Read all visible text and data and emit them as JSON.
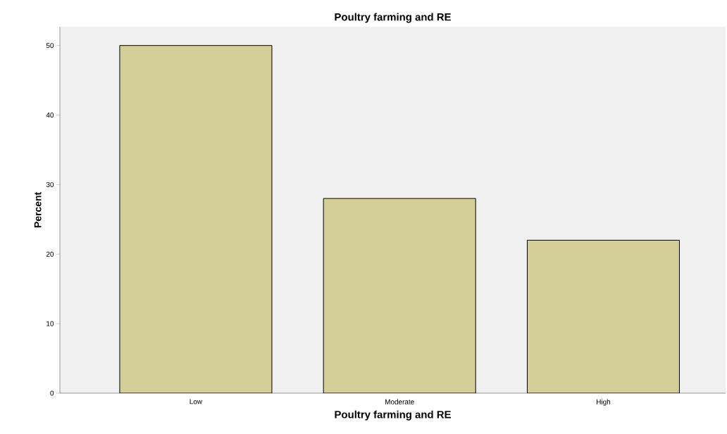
{
  "chart_data": {
    "type": "bar",
    "title": "Poultry farming and RE",
    "xlabel": "Poultry farming and RE",
    "ylabel": "Percent",
    "categories": [
      "Low",
      "Moderate",
      "High"
    ],
    "values": [
      50,
      28,
      22
    ],
    "color": "#d3cd97",
    "ylim": [
      0,
      52.7
    ],
    "yticks": [
      0,
      10,
      20,
      30,
      40,
      50
    ],
    "grid": false
  }
}
